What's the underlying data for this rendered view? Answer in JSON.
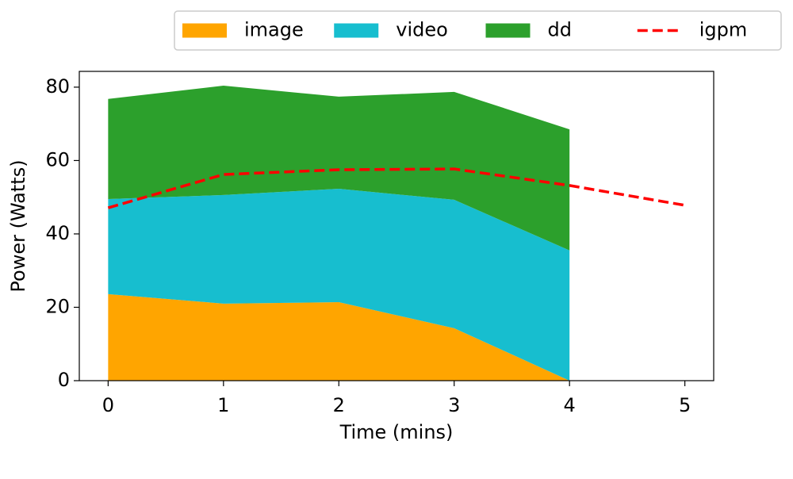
{
  "chart_data": {
    "type": "stackedarea",
    "xlabel": "Time (mins)",
    "ylabel": "Power (Watts)",
    "x": [
      0,
      1,
      2,
      3,
      4,
      5
    ],
    "series": [
      {
        "name": "image",
        "color": "#ffa500",
        "values": [
          23.6,
          21.0,
          21.4,
          14.3,
          0,
          null
        ]
      },
      {
        "name": "video",
        "color": "#17becf",
        "values": [
          25.9,
          29.6,
          30.9,
          35.0,
          35.5,
          null
        ]
      },
      {
        "name": "dd",
        "color": "#2ca02c",
        "values": [
          27.3,
          29.8,
          25.1,
          29.4,
          33.0,
          null
        ]
      },
      {
        "name": "igpm",
        "color": "#ff0000",
        "type": "line",
        "linestyle": "dashed",
        "values": [
          47.1,
          56.2,
          57.5,
          57.7,
          53.2,
          47.8
        ]
      }
    ],
    "xlim": [
      -0.25,
      5.25
    ],
    "xticks": [
      0,
      1,
      2,
      3,
      4,
      5
    ],
    "ylim": [
      0,
      84.3
    ],
    "yticks": [
      0,
      20,
      40,
      60,
      80
    ],
    "legend": "upper center",
    "grid": false
  }
}
